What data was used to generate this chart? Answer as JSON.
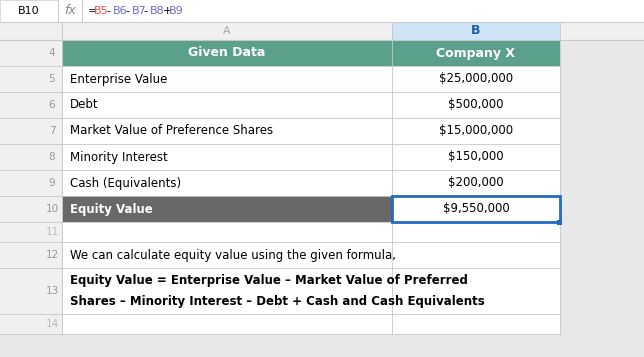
{
  "cell_ref": "B10",
  "formula_segments": [
    {
      "text": "=",
      "color": "#000000"
    },
    {
      "text": "B5",
      "color": "#E8524A"
    },
    {
      "text": "-",
      "color": "#000000"
    },
    {
      "text": "B6",
      "color": "#6B6BCC"
    },
    {
      "text": "-",
      "color": "#000000"
    },
    {
      "text": "B7",
      "color": "#6B6BCC"
    },
    {
      "text": "-",
      "color": "#000000"
    },
    {
      "text": "B8",
      "color": "#6B6BCC"
    },
    {
      "text": "+",
      "color": "#000000"
    },
    {
      "text": "B9",
      "color": "#6B6BCC"
    }
  ],
  "col_a_header": "Given Data",
  "col_b_header": "Company X",
  "rows": [
    {
      "row": 5,
      "label": "Enterprise Value",
      "value": "$25,000,000"
    },
    {
      "row": 6,
      "label": "Debt",
      "value": "$500,000"
    },
    {
      "row": 7,
      "label": "Market Value of Preference Shares",
      "value": "$15,000,000"
    },
    {
      "row": 8,
      "label": "Minority Interest",
      "value": "$150,000"
    },
    {
      "row": 9,
      "label": "Cash (Equivalents)",
      "value": "$200,000"
    },
    {
      "row": 10,
      "label": "Equity Value",
      "value": "$9,550,000"
    }
  ],
  "note_row12": "We can calculate equity value using the given formula,",
  "note_row13_line1": "Equity Value = Enterprise Value – Market Value of Preferred",
  "note_row13_line2": "Shares – Minority Interest – Debt + Cash and Cash Equivalents",
  "header_bg": "#5BA08A",
  "header_text": "#ffffff",
  "equity_row_bg": "#686868",
  "equity_row_text": "#ffffff",
  "data_row_bg": "#ffffff",
  "data_row_text": "#000000",
  "row_num_bg": "#f0f0f0",
  "row_num_text": "#999999",
  "grid_color": "#c8c8c8",
  "formula_bar_bg": "#ffffff",
  "col_header_bg": "#f0f0f0",
  "col_header_text": "#aaaaaa",
  "col_b_header_sel_bg": "#d0e4f7",
  "col_b_header_sel_text": "#1a5faa",
  "selected_cell_border": "#2469C4",
  "note_text_color": "#000000",
  "outer_bg": "#e8e8e8"
}
